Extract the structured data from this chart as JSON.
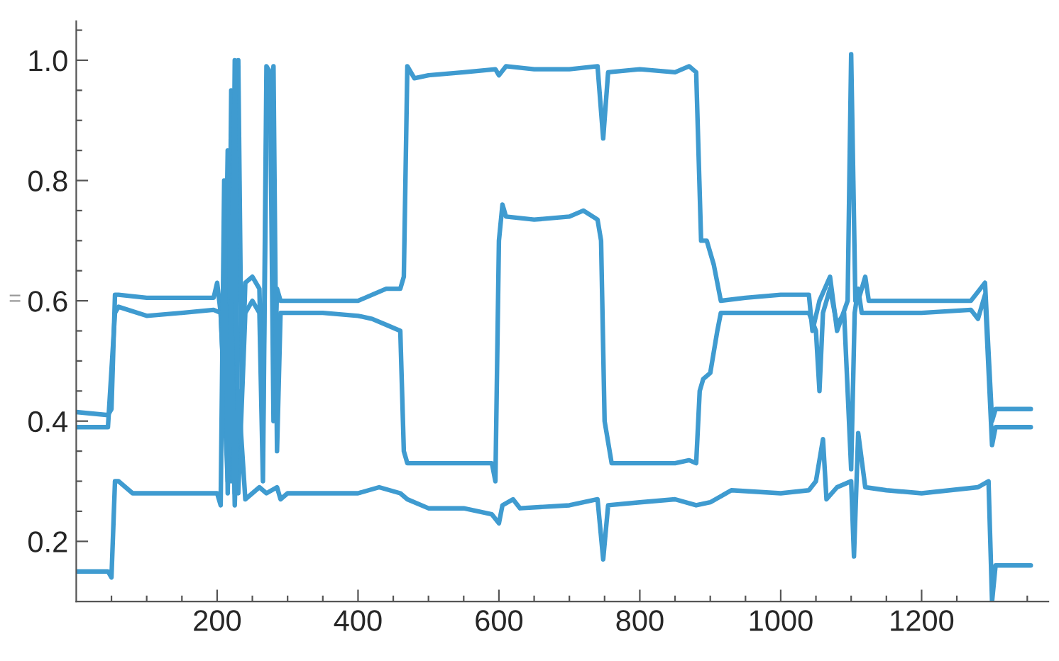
{
  "chart_data": {
    "type": "line",
    "ylabel": "=",
    "xlim": [
      0,
      1380
    ],
    "ylim": [
      0.1,
      1.065
    ],
    "xticks": [
      {
        "value": 50,
        "label": null
      },
      {
        "value": 100,
        "label": null
      },
      {
        "value": 150,
        "label": null
      },
      200,
      {
        "value": 250,
        "label": null
      },
      {
        "value": 300,
        "label": null
      },
      {
        "value": 350,
        "label": null
      },
      400,
      {
        "value": 450,
        "label": null
      },
      {
        "value": 500,
        "label": null
      },
      {
        "value": 550,
        "label": null
      },
      600,
      {
        "value": 650,
        "label": null
      },
      {
        "value": 700,
        "label": null
      },
      {
        "value": 750,
        "label": null
      },
      800,
      {
        "value": 850,
        "label": null
      },
      {
        "value": 900,
        "label": null
      },
      {
        "value": 950,
        "label": null
      },
      1000,
      {
        "value": 1050,
        "label": null
      },
      {
        "value": 1100,
        "label": null
      },
      {
        "value": 1150,
        "label": null
      },
      1200,
      {
        "value": 1250,
        "label": null
      },
      {
        "value": 1300,
        "label": null
      },
      {
        "value": 1350,
        "label": null
      }
    ],
    "yticks": [
      {
        "value": 0.15,
        "label": null
      },
      0.2,
      {
        "value": 0.25,
        "label": null
      },
      {
        "value": 0.3,
        "label": null
      },
      {
        "value": 0.35,
        "label": null
      },
      0.4,
      {
        "value": 0.45,
        "label": null
      },
      {
        "value": 0.5,
        "label": null
      },
      {
        "value": 0.55,
        "label": null
      },
      0.6,
      {
        "value": 0.65,
        "label": null
      },
      {
        "value": 0.7,
        "label": null
      },
      {
        "value": 0.75,
        "label": null
      },
      0.8,
      {
        "value": 0.85,
        "label": null
      },
      {
        "value": 0.9,
        "label": null
      },
      {
        "value": 0.95,
        "label": null
      },
      {
        "value": 1.0,
        "label": "1.0"
      },
      {
        "value": 1.05,
        "label": null
      }
    ],
    "grid": false,
    "marker": "none",
    "line_style": "solid",
    "series": [
      {
        "color": "#3f9bd0",
        "x": [
          0,
          45,
          50,
          55,
          60,
          100,
          150,
          195,
          200,
          205,
          215,
          220,
          225,
          230,
          235,
          240,
          250,
          260,
          265,
          270,
          275,
          280,
          285,
          290,
          300,
          350,
          400,
          420,
          440,
          460,
          465,
          470,
          480,
          500,
          550,
          595,
          600,
          610,
          650,
          700,
          740,
          748,
          755,
          800,
          850,
          870,
          880,
          887,
          895,
          905,
          915,
          950,
          1000,
          1040,
          1045,
          1055,
          1070,
          1080,
          1095,
          1100,
          1106,
          1110,
          1120,
          1125,
          1150,
          1200,
          1270,
          1290,
          1300,
          1305,
          1355
        ],
        "values": [
          0.415,
          0.41,
          0.42,
          0.61,
          0.61,
          0.605,
          0.605,
          0.605,
          0.63,
          0.58,
          0.3,
          0.95,
          0.28,
          1.0,
          0.45,
          0.63,
          0.64,
          0.62,
          0.35,
          0.99,
          0.98,
          0.4,
          0.62,
          0.6,
          0.6,
          0.6,
          0.6,
          0.61,
          0.62,
          0.62,
          0.64,
          0.99,
          0.97,
          0.975,
          0.98,
          0.985,
          0.975,
          0.99,
          0.985,
          0.985,
          0.99,
          0.87,
          0.98,
          0.985,
          0.98,
          0.99,
          0.98,
          0.7,
          0.7,
          0.66,
          0.6,
          0.605,
          0.61,
          0.61,
          0.55,
          0.6,
          0.64,
          0.55,
          0.6,
          1.01,
          0.6,
          0.6,
          0.64,
          0.6,
          0.6,
          0.6,
          0.6,
          0.63,
          0.4,
          0.42,
          0.42
        ]
      },
      {
        "color": "#3f9bd0",
        "x": [
          0,
          45,
          55,
          60,
          100,
          150,
          195,
          205,
          210,
          215,
          220,
          225,
          230,
          240,
          250,
          260,
          265,
          270,
          280,
          285,
          290,
          300,
          350,
          400,
          420,
          440,
          460,
          465,
          470,
          500,
          550,
          590,
          595,
          600,
          605,
          610,
          650,
          700,
          720,
          740,
          745,
          750,
          760,
          800,
          850,
          870,
          880,
          885,
          890,
          900,
          910,
          915,
          950,
          1000,
          1040,
          1050,
          1055,
          1060,
          1070,
          1080,
          1090,
          1100,
          1105,
          1110,
          1115,
          1150,
          1200,
          1270,
          1280,
          1290,
          1300,
          1305,
          1355
        ],
        "values": [
          0.39,
          0.39,
          0.58,
          0.59,
          0.575,
          0.58,
          0.585,
          0.58,
          0.45,
          0.85,
          0.3,
          1.0,
          0.28,
          0.58,
          0.6,
          0.58,
          0.3,
          0.9,
          0.99,
          0.35,
          0.58,
          0.58,
          0.58,
          0.575,
          0.57,
          0.56,
          0.55,
          0.35,
          0.33,
          0.33,
          0.33,
          0.33,
          0.3,
          0.7,
          0.76,
          0.74,
          0.735,
          0.74,
          0.75,
          0.735,
          0.7,
          0.4,
          0.33,
          0.33,
          0.33,
          0.335,
          0.33,
          0.45,
          0.47,
          0.48,
          0.55,
          0.58,
          0.58,
          0.58,
          0.58,
          0.55,
          0.45,
          0.58,
          0.62,
          0.56,
          0.58,
          0.32,
          0.58,
          0.62,
          0.58,
          0.58,
          0.58,
          0.585,
          0.57,
          0.61,
          0.36,
          0.39,
          0.39
        ]
      },
      {
        "color": "#3f9bd0",
        "x": [
          0,
          45,
          50,
          55,
          60,
          80,
          150,
          200,
          205,
          210,
          215,
          220,
          225,
          230,
          240,
          260,
          270,
          285,
          290,
          300,
          350,
          400,
          430,
          460,
          470,
          500,
          550,
          590,
          600,
          605,
          620,
          630,
          700,
          740,
          748,
          755,
          800,
          850,
          880,
          900,
          930,
          1000,
          1040,
          1050,
          1060,
          1065,
          1080,
          1100,
          1104,
          1110,
          1120,
          1150,
          1200,
          1280,
          1295,
          1300,
          1305,
          1355
        ],
        "values": [
          0.15,
          0.15,
          0.14,
          0.3,
          0.3,
          0.28,
          0.28,
          0.28,
          0.26,
          0.8,
          0.28,
          0.6,
          0.26,
          0.45,
          0.27,
          0.29,
          0.28,
          0.29,
          0.27,
          0.28,
          0.28,
          0.28,
          0.29,
          0.28,
          0.27,
          0.255,
          0.255,
          0.245,
          0.23,
          0.26,
          0.27,
          0.255,
          0.26,
          0.27,
          0.17,
          0.26,
          0.265,
          0.27,
          0.26,
          0.265,
          0.285,
          0.28,
          0.285,
          0.3,
          0.37,
          0.27,
          0.29,
          0.3,
          0.175,
          0.38,
          0.29,
          0.285,
          0.28,
          0.29,
          0.3,
          0.1,
          0.16,
          0.16
        ]
      }
    ]
  }
}
